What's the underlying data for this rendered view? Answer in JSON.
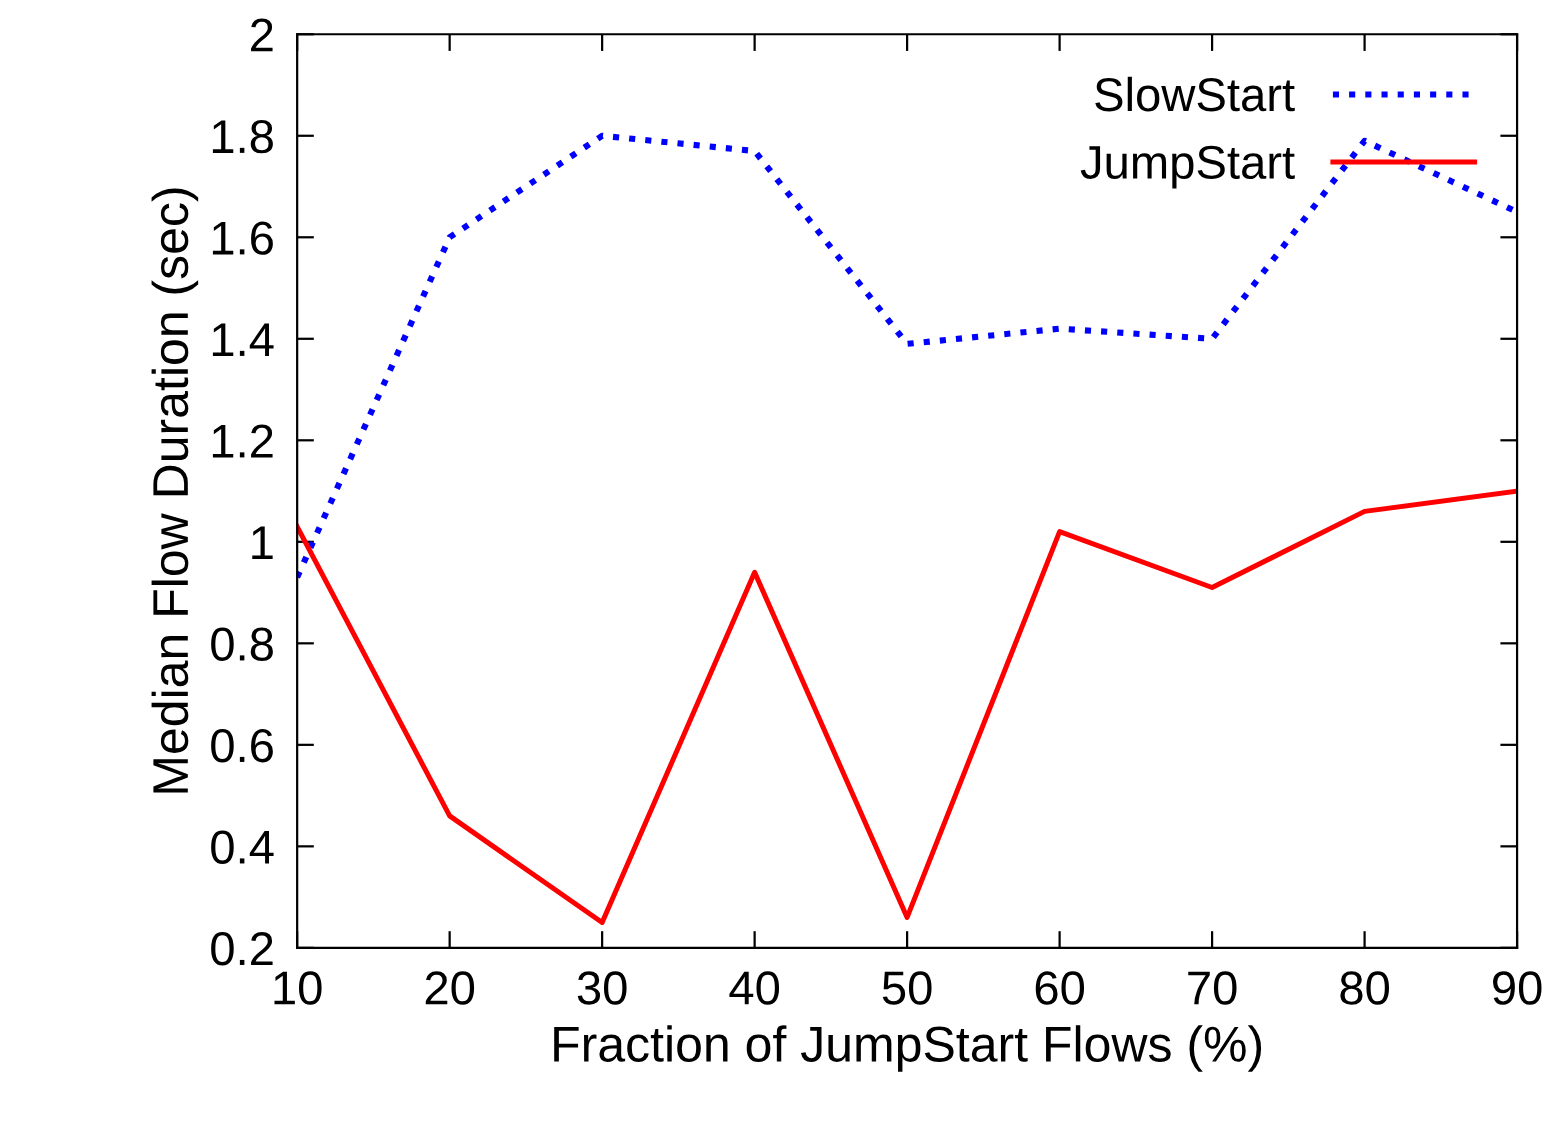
{
  "chart_data": {
    "type": "line",
    "xlabel": "Fraction of JumpStart Flows (%)",
    "ylabel": "Median Flow Duration (sec)",
    "x": [
      10,
      20,
      30,
      40,
      50,
      60,
      70,
      80,
      90
    ],
    "series": [
      {
        "name": "SlowStart",
        "color": "#0000ff",
        "line_style": "dotted",
        "values": [
          0.93,
          1.6,
          1.8,
          1.77,
          1.39,
          1.42,
          1.4,
          1.79,
          1.65
        ]
      },
      {
        "name": "JumpStart",
        "color": "#ff0000",
        "line_style": "solid",
        "values": [
          1.03,
          0.46,
          0.25,
          0.94,
          0.26,
          1.02,
          0.91,
          1.06,
          1.1
        ]
      }
    ],
    "xlim": [
      10,
      90
    ],
    "xticks": [
      10,
      20,
      30,
      40,
      50,
      60,
      70,
      80,
      90
    ],
    "ylim": [
      0.2,
      2
    ],
    "yticks": [
      0.2,
      0.4,
      0.6,
      0.8,
      1,
      1.2,
      1.4,
      1.6,
      1.8,
      2
    ],
    "grid": false,
    "legend": "top right",
    "marker": "none"
  }
}
